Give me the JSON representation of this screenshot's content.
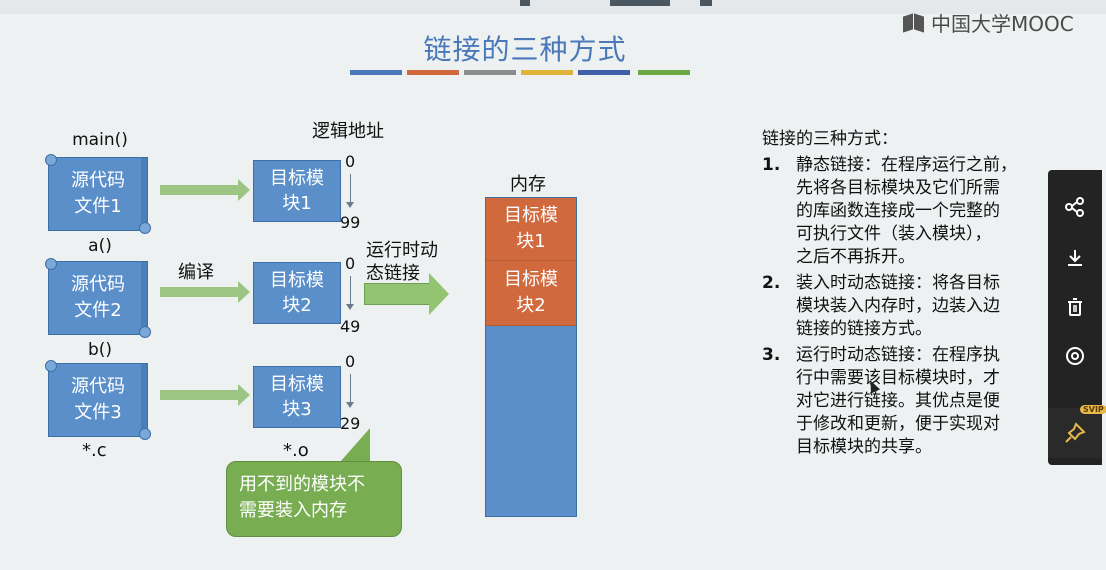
{
  "logo_text": "中国大学MOOC",
  "title": "链接的三种方式",
  "accent_colors": [
    "#4a78b8",
    "#d06a3e",
    "#8c8c8c",
    "#e0b43a",
    "#3f5fa8",
    "#6da846"
  ],
  "diagram": {
    "func_labels": [
      "main()",
      "a()",
      "b()"
    ],
    "source_files": [
      {
        "line1": "源代码",
        "line2": "文件1"
      },
      {
        "line1": "源代码",
        "line2": "文件2"
      },
      {
        "line1": "源代码",
        "line2": "文件3"
      }
    ],
    "compile_label": "编译",
    "logical_addr_label": "逻辑地址",
    "object_modules": [
      {
        "line1": "目标模",
        "line2": "块1",
        "start": "0",
        "end": "99"
      },
      {
        "line1": "目标模",
        "line2": "块2",
        "start": "0",
        "end": "49"
      },
      {
        "line1": "目标模",
        "line2": "块3",
        "start": "0",
        "end": "29"
      }
    ],
    "src_ext": "*.c",
    "obj_ext": "*.o",
    "runtime_link_line1": "运行时动",
    "runtime_link_line2": "态链接",
    "memory_label": "内存",
    "memory_blocks": [
      {
        "line1": "目标模",
        "line2": "块1"
      },
      {
        "line1": "目标模",
        "line2": "块2"
      }
    ],
    "callout_line1": "用不到的模块不",
    "callout_line2": "需要装入内存"
  },
  "right_panel": {
    "heading": "链接的三种方式：",
    "items": [
      {
        "num": "1.",
        "lines": [
          "静态链接：在程序运行之前，",
          "先将各目标模块及它们所需",
          "的库函数连接成一个完整的",
          "可执行文件（装入模块），",
          "之后不再拆开。"
        ]
      },
      {
        "num": "2.",
        "lines": [
          "装入时动态链接：将各目标",
          "模块装入内存时，边装入边",
          "链接的链接方式。"
        ]
      },
      {
        "num": "3.",
        "lines": [
          "运行时动态链接：在程序执",
          "行中需要该目标模块时，才",
          "对它进行链接。其优点是便",
          "于修改和更新，便于实现对",
          "目标模块的共享。"
        ]
      }
    ]
  },
  "side_toolbar": {
    "icons": [
      "share-icon",
      "download-icon",
      "delete-icon",
      "view-icon",
      "pin-icon"
    ],
    "svip_badge": "SVIP"
  }
}
